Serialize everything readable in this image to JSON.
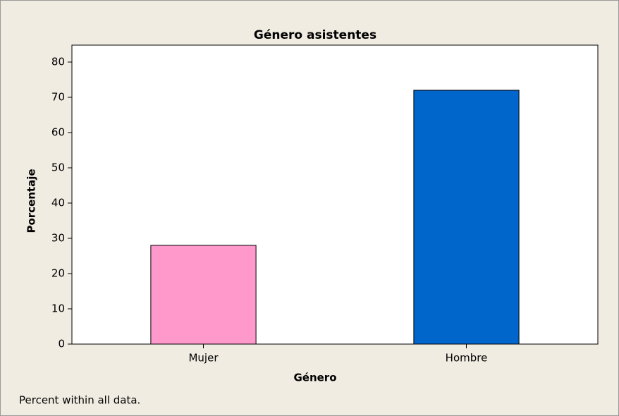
{
  "chart_data": {
    "type": "bar",
    "title": "Género asistentes",
    "x_label": "Género",
    "y_label": "Porcentaje",
    "categories": [
      "Mujer",
      "Hombre"
    ],
    "values": [
      28,
      72
    ],
    "colors": [
      "#ff99cc",
      "#0066cc"
    ],
    "ylim": [
      0,
      84.8
    ],
    "yticks": [
      0,
      10,
      20,
      30,
      40,
      50,
      60,
      70,
      80
    ],
    "footnote": "Percent within all data."
  }
}
